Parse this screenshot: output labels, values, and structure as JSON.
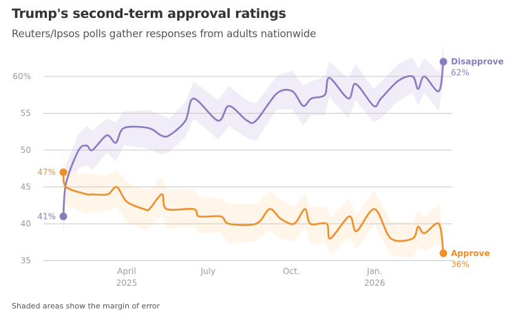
{
  "header": {
    "title": "Trump's second-term approval ratings",
    "subtitle": "Reuters/Ipsos polls gather responses from adults nationwide"
  },
  "footnote": "Shaded areas show the margin of error",
  "chart_data": {
    "type": "line",
    "title": "Trump's second-term approval ratings",
    "subtitle": "Reuters/Ipsos polls gather responses from adults nationwide",
    "xlabel": "",
    "ylabel": "",
    "ylim": [
      35,
      62
    ],
    "xlim_days": [
      0,
      420
    ],
    "y_ticks": [
      {
        "value": 60,
        "label": "60%"
      },
      {
        "value": 55,
        "label": "55"
      },
      {
        "value": 50,
        "label": "50"
      },
      {
        "value": 45,
        "label": "45"
      },
      {
        "value": 40,
        "label": "40"
      },
      {
        "value": 35,
        "label": "35"
      }
    ],
    "x_ticks": [
      {
        "day": 70,
        "label": "April",
        "sublabel": "2025"
      },
      {
        "day": 160,
        "label": "July",
        "sublabel": ""
      },
      {
        "day": 252,
        "label": "Oct.",
        "sublabel": ""
      },
      {
        "day": 344,
        "label": "Jan.",
        "sublabel": "2026"
      }
    ],
    "grid": true,
    "margin_of_error": 2.5,
    "series": [
      {
        "name": "Disapprove",
        "color": "#8b7bbf",
        "band_color": "#efeaf7",
        "start_label": "41%",
        "end_label": "62%",
        "points": [
          [
            0,
            41
          ],
          [
            3,
            45.5
          ],
          [
            17,
            50
          ],
          [
            26,
            50.6
          ],
          [
            32,
            50
          ],
          [
            48,
            52
          ],
          [
            58,
            51
          ],
          [
            67,
            53
          ],
          [
            94,
            53
          ],
          [
            108,
            52
          ],
          [
            117,
            52
          ],
          [
            135,
            54
          ],
          [
            144,
            57
          ],
          [
            171,
            54
          ],
          [
            183,
            56
          ],
          [
            203,
            54
          ],
          [
            213,
            54
          ],
          [
            236,
            57.7
          ],
          [
            253,
            58
          ],
          [
            265,
            56
          ],
          [
            274,
            57
          ],
          [
            289,
            57.5
          ],
          [
            294,
            59.8
          ],
          [
            315,
            57
          ],
          [
            323,
            59
          ],
          [
            343,
            56
          ],
          [
            351,
            57
          ],
          [
            370,
            59.4
          ],
          [
            386,
            60
          ],
          [
            392,
            58.3
          ],
          [
            399,
            60
          ],
          [
            415,
            58
          ],
          [
            420,
            62
          ]
        ]
      },
      {
        "name": "Approve",
        "color": "#ee8f2a",
        "band_color": "#fff3e4",
        "start_label": "47%",
        "end_label": "36%",
        "points": [
          [
            0,
            47
          ],
          [
            3,
            45
          ],
          [
            26,
            44
          ],
          [
            31,
            44
          ],
          [
            49,
            44
          ],
          [
            59,
            45
          ],
          [
            70,
            43
          ],
          [
            89,
            42
          ],
          [
            95,
            42
          ],
          [
            109,
            44
          ],
          [
            114,
            42
          ],
          [
            144,
            42
          ],
          [
            150,
            41
          ],
          [
            174,
            41
          ],
          [
            183,
            40
          ],
          [
            213,
            40
          ],
          [
            228,
            42
          ],
          [
            240,
            40.7
          ],
          [
            255,
            40
          ],
          [
            267,
            42
          ],
          [
            273,
            40
          ],
          [
            291,
            40
          ],
          [
            295,
            38
          ],
          [
            316,
            41
          ],
          [
            324,
            39
          ],
          [
            344,
            42
          ],
          [
            362,
            38
          ],
          [
            386,
            38
          ],
          [
            392,
            39.6
          ],
          [
            399,
            38.7
          ],
          [
            415,
            40
          ],
          [
            420,
            36
          ]
        ]
      }
    ]
  }
}
